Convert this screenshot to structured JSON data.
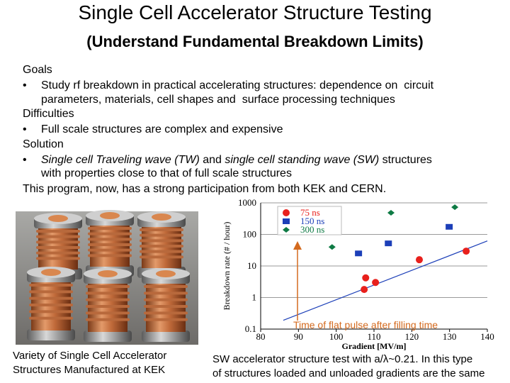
{
  "slide": {
    "title": "Single Cell Accelerator Structure Testing",
    "subtitle": "(Understand Fundamental Breakdown Limits)",
    "body": [
      {
        "parts": [
          {
            "text": "Goals",
            "italic": false
          }
        ]
      },
      {
        "bullet": "•",
        "parts": [
          {
            "text": "Study rf breakdown in practical accelerating structures: dependence on  circuit",
            "italic": false
          }
        ]
      },
      {
        "parts": [
          {
            "text": "parameters, materials, cell shapes and  surface processing techniques",
            "italic": false
          }
        ]
      },
      {
        "parts": [
          {
            "text": "Difficulties",
            "italic": false
          }
        ]
      },
      {
        "bullet": "•",
        "parts": [
          {
            "text": "Full scale structures are complex and expensive",
            "italic": false
          }
        ]
      },
      {
        "parts": [
          {
            "text": "Solution",
            "italic": false
          }
        ]
      },
      {
        "bullet": "•",
        "parts": [
          {
            "text": "Single cell Traveling wave (TW)",
            "italic": true
          },
          {
            "text": " and ",
            "italic": false
          },
          {
            "text": "single cell standing wave (SW)",
            "italic": true
          },
          {
            "text": " structures",
            "italic": false
          }
        ]
      },
      {
        "parts": [
          {
            "text": "with properties close to that of full scale structures",
            "italic": false
          }
        ]
      },
      {
        "parts": [
          {
            "text": "This program, now, has a strong participation from both KEK and CERN.",
            "italic": false
          }
        ]
      }
    ],
    "caption_left": [
      "Variety of Single Cell Accelerator",
      "Structures Manufactured at KEK"
    ],
    "caption_right": [
      "SW accelerator structure test with a/λ~0.21.  In this type",
      "of structures loaded and unloaded gradients are the same"
    ]
  },
  "chart_data": {
    "type": "scatter",
    "xlabel": "Gradient [MV/m]",
    "ylabel": "Breakdown rate (# / hour)",
    "annotation": "Time of flat pulse after filling time",
    "xlim": [
      80,
      140
    ],
    "xticks": [
      80,
      90,
      100,
      110,
      120,
      130,
      140
    ],
    "ylim": [
      0.1,
      1000
    ],
    "yticks": [
      1000,
      100,
      10,
      1,
      0.1
    ],
    "log_y": true,
    "grid": true,
    "series": [
      {
        "name": "75 ns",
        "color": "#e8201c",
        "marker": "circle",
        "x": [
          107.8,
          107.4,
          110.4,
          122,
          134.4
        ],
        "values": [
          4.2,
          1.8,
          3.0,
          15.8,
          29.5
        ]
      },
      {
        "name": "150 ns",
        "color": "#1c3fb8",
        "marker": "square",
        "x": [
          105.9,
          113.8,
          129.9
        ],
        "values": [
          25,
          52,
          174
        ]
      },
      {
        "name": "300 ns",
        "color": "#0e7a44",
        "marker": "diamond",
        "x": [
          98.9,
          114.5,
          131.4
        ],
        "values": [
          40,
          485,
          730
        ]
      }
    ],
    "trend_line": {
      "color": "#1c3fb8",
      "x": [
        86,
        140
      ],
      "values": [
        0.19,
        62
      ]
    }
  }
}
